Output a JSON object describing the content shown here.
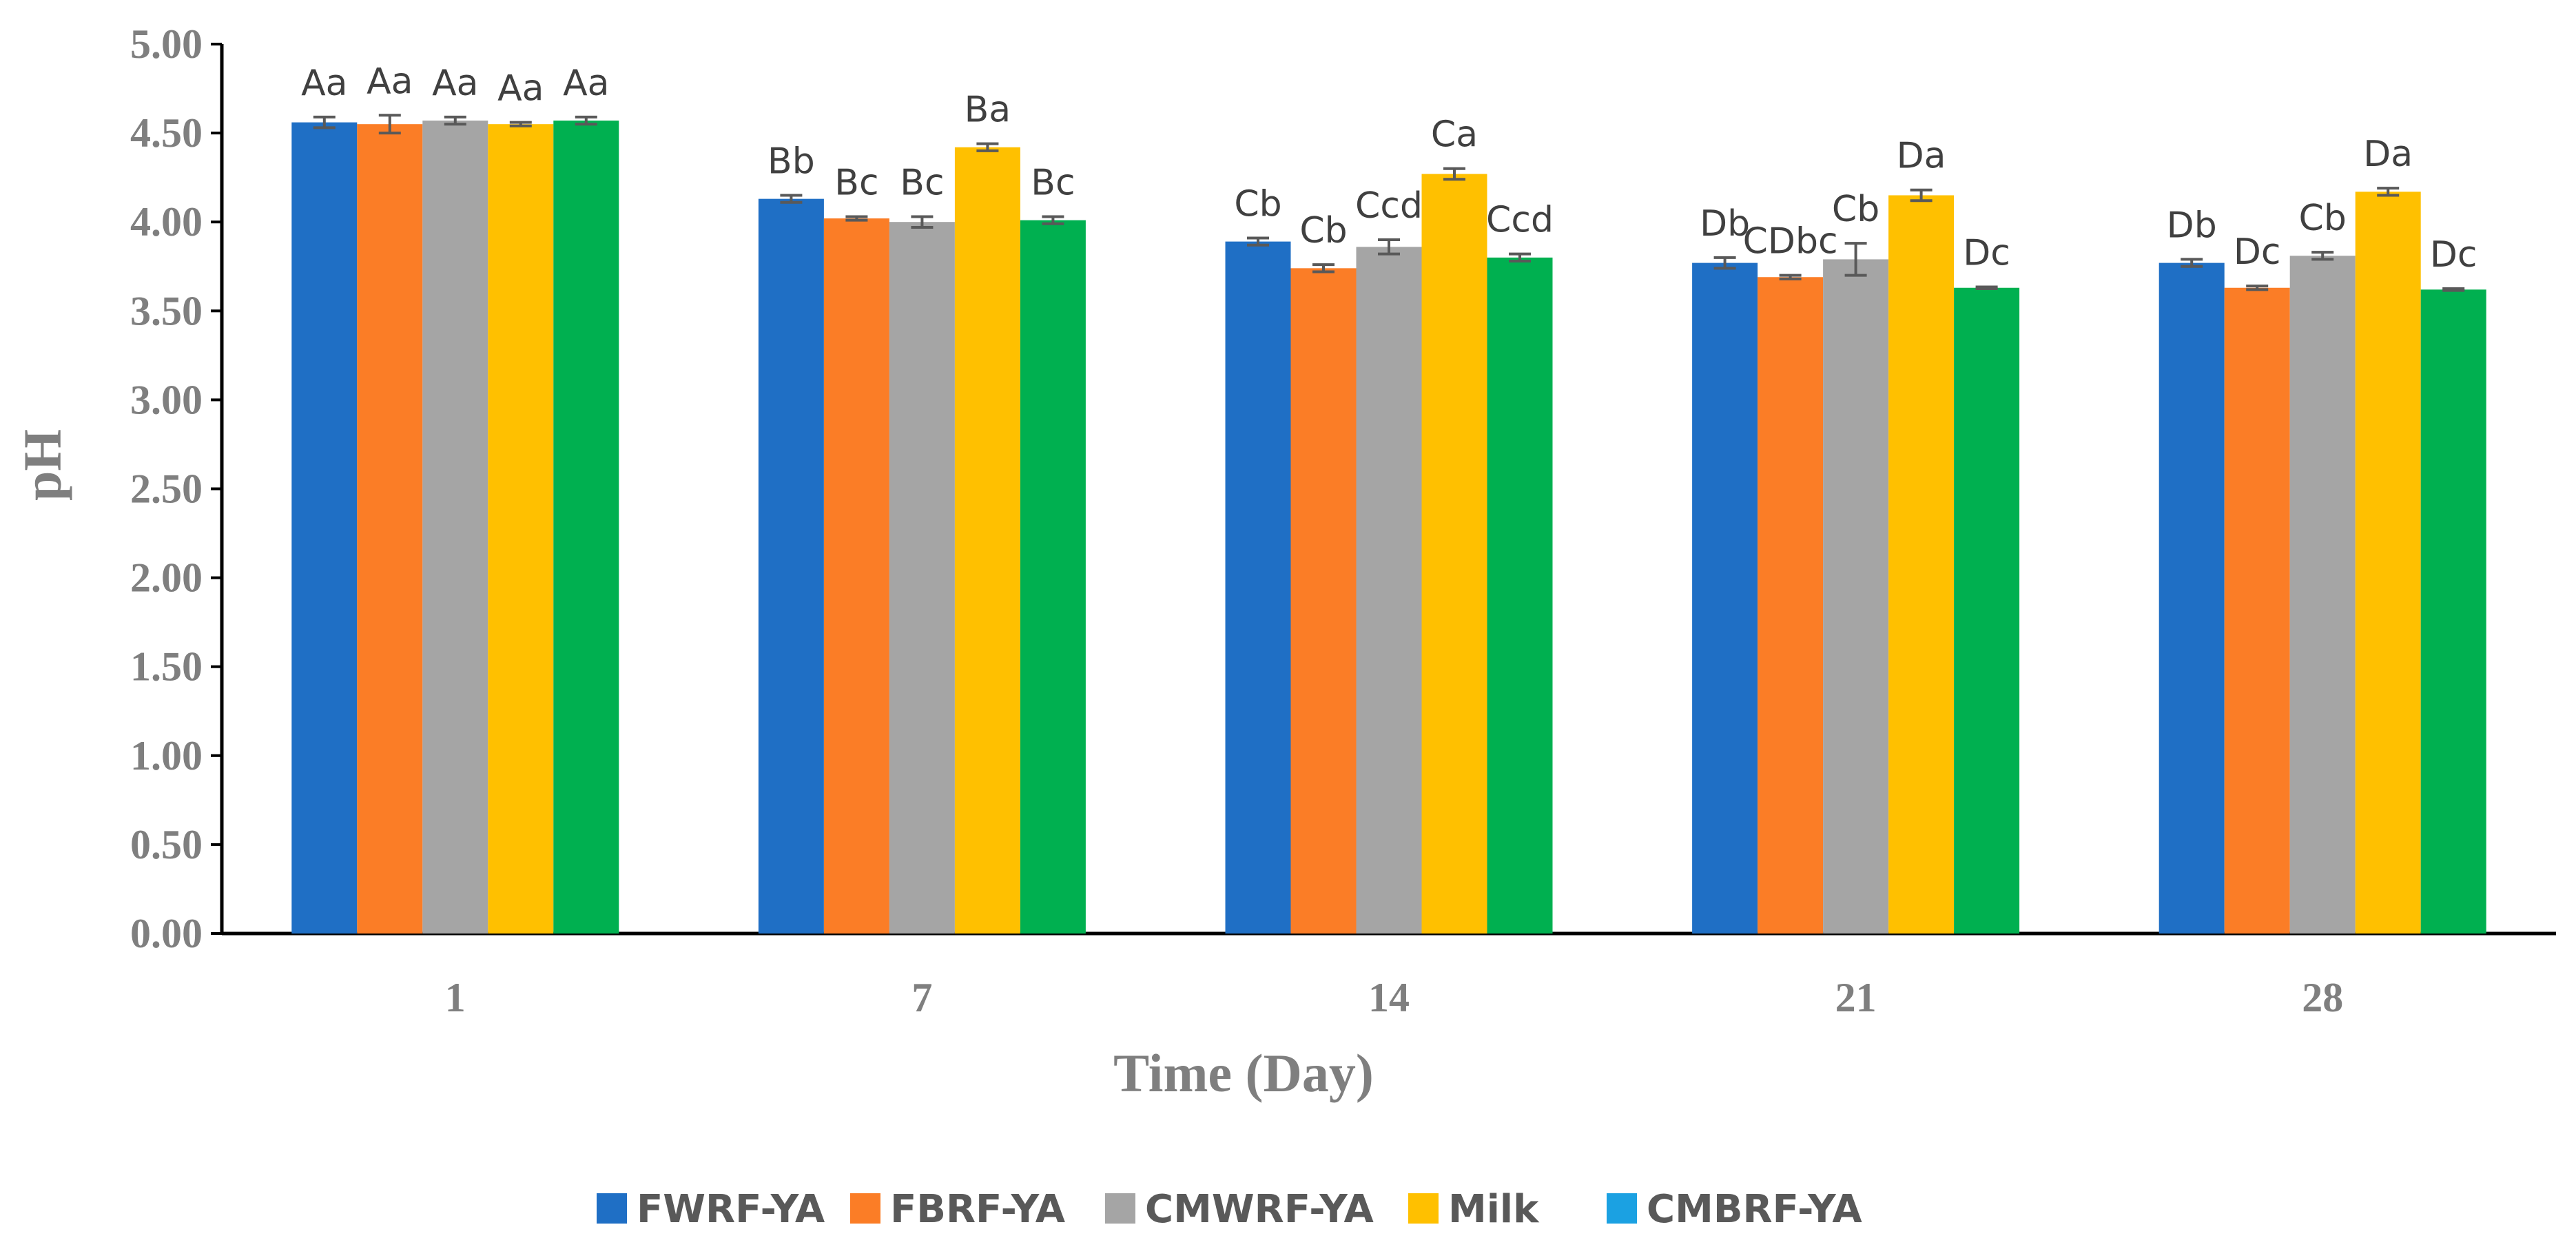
{
  "chart_data": {
    "type": "bar",
    "xlabel": "Time (Day)",
    "ylabel": "pH",
    "ylim": [
      0,
      5
    ],
    "yticks": [
      "0.00",
      "0.50",
      "1.00",
      "1.50",
      "2.00",
      "2.50",
      "3.00",
      "3.50",
      "4.00",
      "4.50",
      "5.00"
    ],
    "categories": [
      "1",
      "7",
      "14",
      "21",
      "28"
    ],
    "legend_position": "bottom",
    "grid": false,
    "series": [
      {
        "name": "FWRF-YA",
        "color": "#1f6fc5",
        "values": [
          4.56,
          4.13,
          3.89,
          3.77,
          3.77
        ],
        "errors": [
          0.03,
          0.02,
          0.02,
          0.03,
          0.02
        ],
        "labels": [
          "Aa",
          "Bb",
          "Cb",
          "Db",
          "Db"
        ]
      },
      {
        "name": "FBRF-YA",
        "color": "#fb7d26",
        "values": [
          4.55,
          4.02,
          3.74,
          3.69,
          3.63
        ],
        "errors": [
          0.05,
          0.01,
          0.02,
          0.01,
          0.01
        ],
        "labels": [
          "Aa",
          "Bc",
          "Cb",
          "CDbc",
          "Dc"
        ]
      },
      {
        "name": "CMWRF-YA",
        "color": "#a5a5a5",
        "values": [
          4.57,
          4.0,
          3.86,
          3.79,
          3.81
        ],
        "errors": [
          0.02,
          0.03,
          0.04,
          0.09,
          0.02
        ],
        "labels": [
          "Aa",
          "Bc",
          "Ccd",
          "Cb",
          "Cb"
        ]
      },
      {
        "name": "Milk",
        "color": "#ffc000",
        "values": [
          4.55,
          4.42,
          4.27,
          4.15,
          4.17
        ],
        "errors": [
          0.01,
          0.02,
          0.03,
          0.03,
          0.02
        ],
        "labels": [
          "Aa",
          "Ba",
          "Ca",
          "Da",
          "Da"
        ]
      },
      {
        "name": "CMBRF-YA",
        "color": "#00b050",
        "legend_color": "#1ba1e2",
        "values": [
          4.57,
          4.01,
          3.8,
          3.63,
          3.62
        ],
        "errors": [
          0.02,
          0.02,
          0.02,
          0.005,
          0.005
        ],
        "labels": [
          "Aa",
          "Bc",
          "Ccd",
          "Dc",
          "Dc"
        ]
      }
    ]
  }
}
